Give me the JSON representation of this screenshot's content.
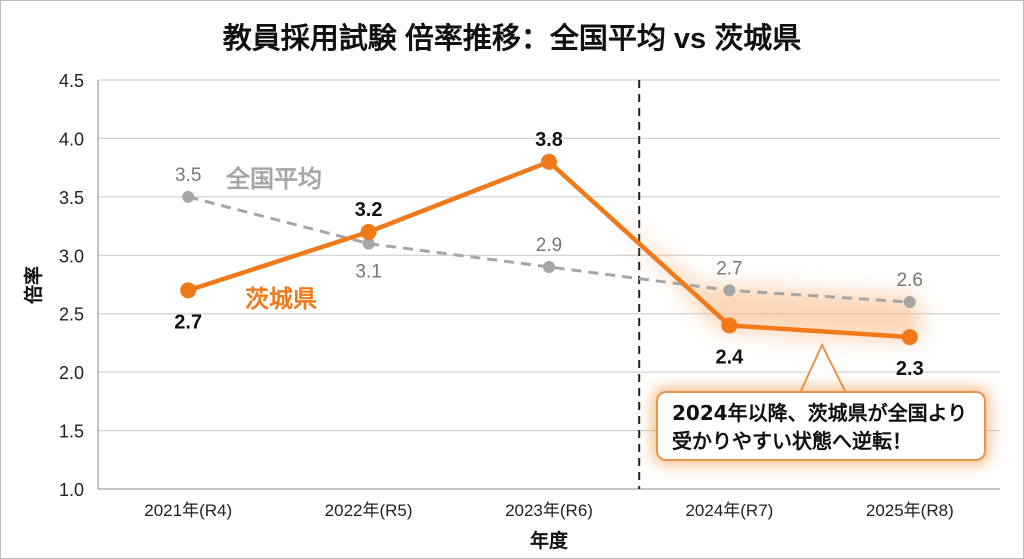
{
  "chart_data": {
    "type": "line",
    "title": "教員採用試験 倍率推移：全国平均 vs 茨城県",
    "xlabel": "年度",
    "ylabel": "倍率",
    "ylim": [
      1.0,
      4.5
    ],
    "yticks": [
      "1.0",
      "1.5",
      "2.0",
      "2.5",
      "3.0",
      "3.5",
      "4.0",
      "4.5"
    ],
    "grid": true,
    "categories": [
      "2021年(R4)",
      "2022年(R5)",
      "2023年(R6)",
      "2024年(R7)",
      "2025年(R8)"
    ],
    "series": [
      {
        "name": "全国平均",
        "values": [
          3.5,
          3.1,
          2.9,
          2.7,
          2.6
        ],
        "labels": [
          "3.5",
          "3.1",
          "2.9",
          "2.7",
          "2.6"
        ],
        "color": "#a6a6a6",
        "style": "dashed"
      },
      {
        "name": "茨城県",
        "values": [
          2.7,
          3.2,
          3.8,
          2.4,
          2.3
        ],
        "labels": [
          "2.7",
          "3.2",
          "3.8",
          "2.4",
          "2.3"
        ],
        "color": "#f07a1a",
        "style": "solid"
      }
    ],
    "divider_after_category": "2023年(R6)",
    "annotation": {
      "line1": "2024年以降、茨城県が全国より",
      "line2": "受かりやすい状態へ逆転！"
    }
  }
}
